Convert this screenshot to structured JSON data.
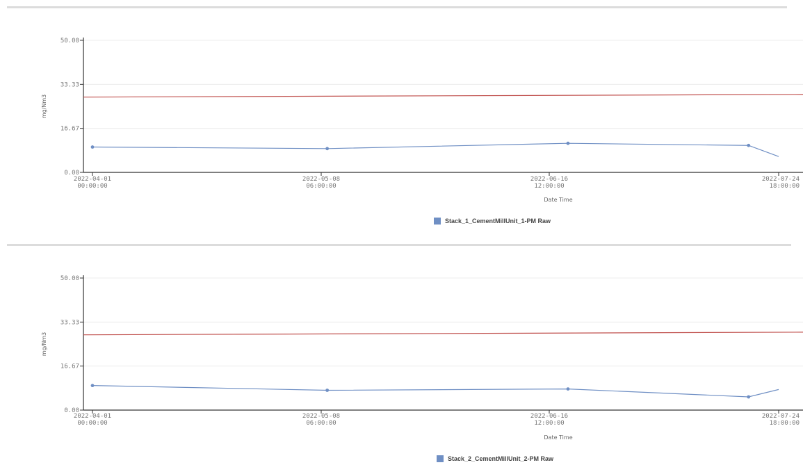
{
  "colors": {
    "series": "#6f8fc4",
    "limit": "#c0504d",
    "grid": "#ececec",
    "axis": "#333333"
  },
  "chart_data": [
    {
      "type": "line",
      "xlabel": "Date Time",
      "ylabel": "mg/Nm3",
      "ylim": [
        0,
        50
      ],
      "yticks": [
        "0.00",
        "16.67",
        "33.33",
        "50.00"
      ],
      "xticks": [
        {
          "l1": "2022-04-01",
          "l2": "00:00:00"
        },
        {
          "l1": "2022-05-08",
          "l2": "06:00:00"
        },
        {
          "l1": "2022-06-16",
          "l2": "12:00:00"
        },
        {
          "l1": "2022-07-24",
          "l2": "18:00:00"
        }
      ],
      "x_range": [
        "2022-04-01",
        "2022-07-24"
      ],
      "series": [
        {
          "name": "Stack_1_CementMillUnit_1-PM Raw",
          "x": [
            "2022-04-01",
            "2022-05-10",
            "2022-06-19",
            "2022-07-19",
            "2022-07-24"
          ],
          "y": [
            9.6,
            9.0,
            11.0,
            10.2,
            6.0
          ]
        }
      ],
      "limit_line": {
        "y_start": 28.5,
        "y_end": 29.5
      },
      "legend_position": "bottom-center"
    },
    {
      "type": "line",
      "xlabel": "Date Time",
      "ylabel": "mg/Nm3",
      "ylim": [
        0,
        50
      ],
      "yticks": [
        "0.00",
        "16.67",
        "33.33",
        "50.00"
      ],
      "xticks": [
        {
          "l1": "2022-04-01",
          "l2": "00:00:00"
        },
        {
          "l1": "2022-05-08",
          "l2": "06:00:00"
        },
        {
          "l1": "2022-06-16",
          "l2": "12:00:00"
        },
        {
          "l1": "2022-07-24",
          "l2": "18:00:00"
        }
      ],
      "x_range": [
        "2022-04-01",
        "2022-07-24"
      ],
      "series": [
        {
          "name": "Stack_2_CementMillUnit_2-PM Raw",
          "x": [
            "2022-04-01",
            "2022-05-10",
            "2022-06-19",
            "2022-07-19",
            "2022-07-24"
          ],
          "y": [
            9.3,
            7.5,
            8.0,
            5.0,
            7.8
          ]
        }
      ],
      "limit_line": {
        "y_start": 28.5,
        "y_end": 29.5
      },
      "legend_position": "bottom-center"
    }
  ]
}
